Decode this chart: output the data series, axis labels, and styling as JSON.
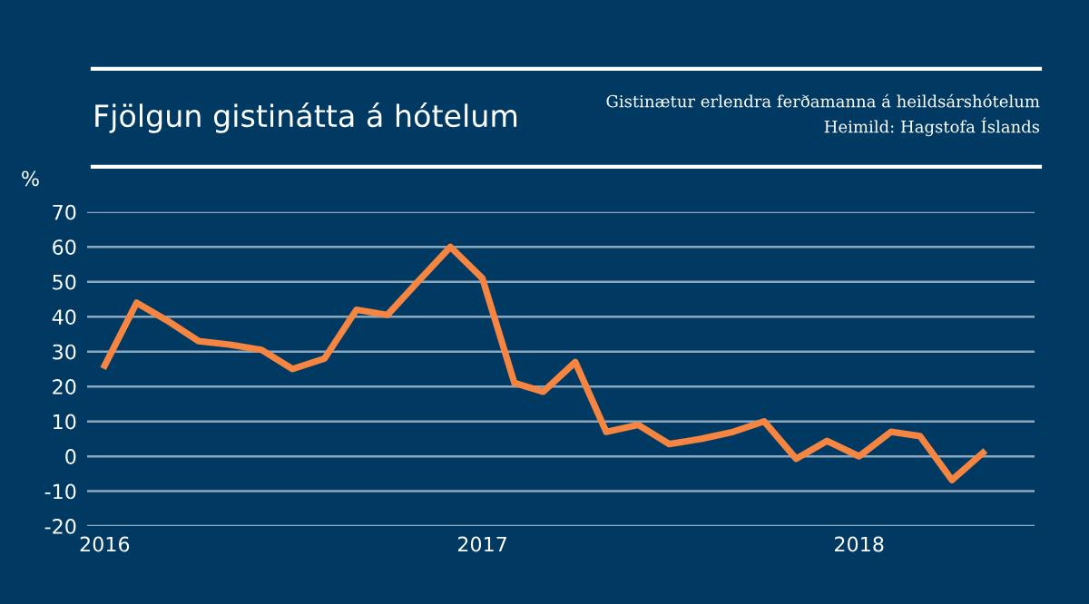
{
  "chart_data": {
    "type": "line",
    "title": "Fjölgun gistinátta á hótelum",
    "subtitle": "Gistinætur erlendra ferðamanna á heildsárshótelum",
    "annotations": [
      "Heimild: Hagstofa Íslands"
    ],
    "ylabel": "%",
    "x": [
      "2016-01",
      "2016-02",
      "2016-03",
      "2016-04",
      "2016-05",
      "2016-06",
      "2016-07",
      "2016-08",
      "2016-09",
      "2016-10",
      "2016-11",
      "2016-12",
      "2017-01",
      "2017-02",
      "2017-03",
      "2017-04",
      "2017-05",
      "2017-06",
      "2017-07",
      "2017-08",
      "2017-09",
      "2017-10",
      "2017-11",
      "2017-12",
      "2018-01",
      "2018-02",
      "2018-03",
      "2018-04",
      "2018-05"
    ],
    "series": [
      {
        "color": "#f58540",
        "values": [
          26,
          44,
          39,
          33,
          32,
          30.5,
          25,
          28,
          42,
          40.5,
          50.5,
          60,
          51,
          21,
          18.5,
          27,
          7,
          9,
          3.5,
          5,
          7,
          10,
          -0.7,
          4.4,
          0,
          7,
          5.8,
          -6.8,
          1
        ]
      }
    ],
    "xlim": [
      "2015-12-15",
      "2018-06-20"
    ],
    "xticks": [
      {
        "value": "2016-01-01",
        "label": "2016"
      },
      {
        "value": "2017-01-01",
        "label": "2017"
      },
      {
        "value": "2018-01-01",
        "label": "2018"
      }
    ],
    "ylim": [
      -20,
      70
    ],
    "yticks": [
      -20,
      -10,
      0,
      10,
      20,
      30,
      40,
      50,
      60,
      70
    ],
    "grid": "y",
    "marker": "none",
    "line_style": "solid"
  }
}
